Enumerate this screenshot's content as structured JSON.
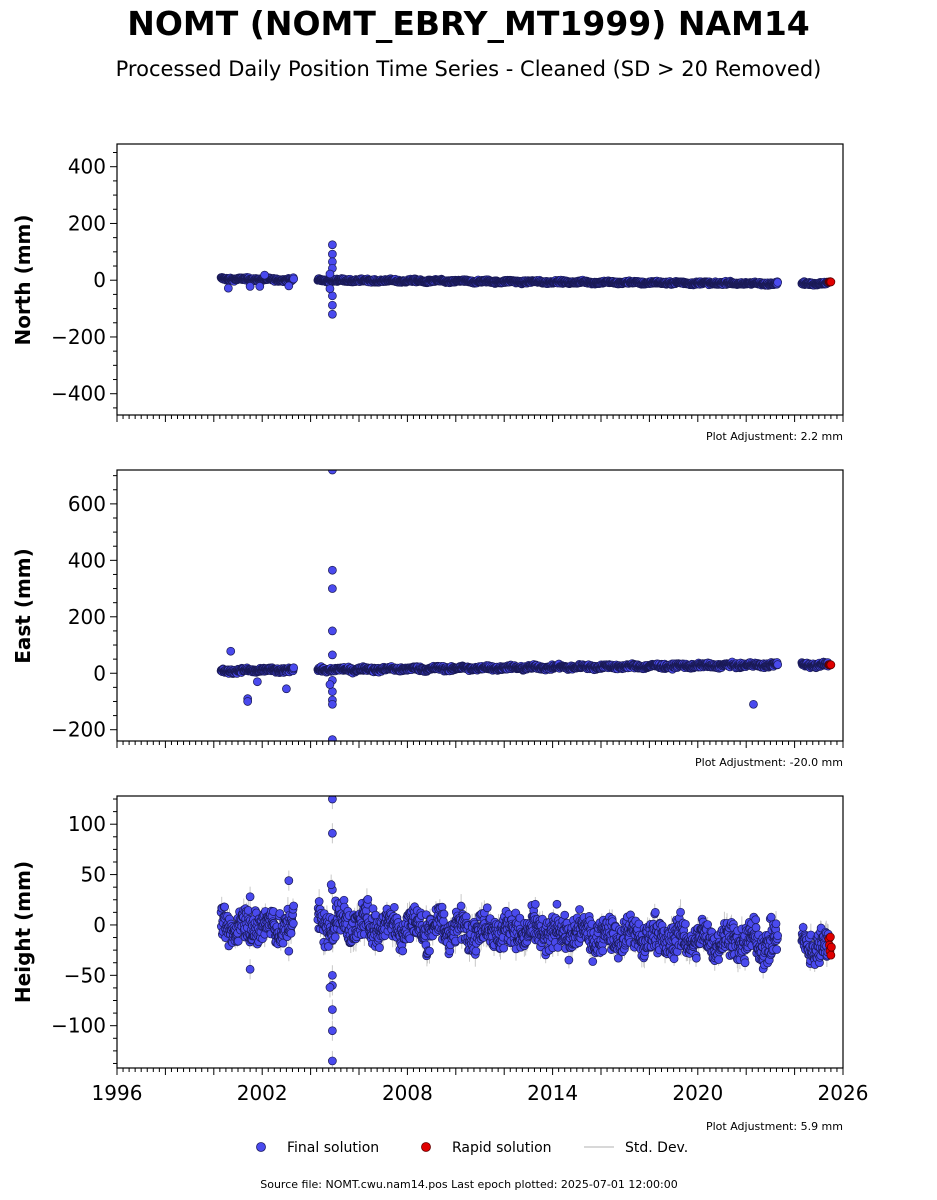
{
  "title": "NOMT (NOMT_EBRY_MT1999) NAM14",
  "subtitle": "Processed Daily Position Time Series - Cleaned (SD > 20 Removed)",
  "source_note": "Source file: NOMT.cwu.nam14.pos  Last epoch plotted: 2025-07-01 12:00:00",
  "legend": [
    {
      "label": "Final solution",
      "color": "#4a4aee",
      "kind": "marker"
    },
    {
      "label": "Rapid solution",
      "color": "#e00000",
      "kind": "marker"
    },
    {
      "label": "Std. Dev.",
      "color": "#cccccc",
      "kind": "line"
    }
  ],
  "chart_data": [
    {
      "type": "scatter",
      "ylabel": "North (mm)",
      "adjustment": "Plot Adjustment: 2.2 mm",
      "xlim": [
        1996,
        2026
      ],
      "ylim": [
        -475,
        480
      ],
      "yticks": [
        -400,
        -200,
        0,
        200,
        400
      ],
      "xticks": [
        1996,
        2002,
        2008,
        2014,
        2020,
        2026
      ],
      "segments": [
        {
          "x0": 2000.3,
          "x1": 2001.6,
          "y0": 5,
          "y1": 3
        },
        {
          "x0": 2001.6,
          "x1": 2003.3,
          "y0": 3,
          "y1": 1
        },
        {
          "x0": 2004.3,
          "x1": 2023.3,
          "y0": 0,
          "y1": -12
        },
        {
          "x0": 2024.3,
          "x1": 2025.4,
          "y0": -11,
          "y1": -12
        }
      ],
      "scatter_amp": 4,
      "outliers": [
        [
          2000.6,
          -28
        ],
        [
          2001.5,
          -22
        ],
        [
          2001.9,
          -22
        ],
        [
          2002.1,
          18
        ],
        [
          2003.1,
          -20
        ],
        [
          2004.9,
          125
        ],
        [
          2004.9,
          92
        ],
        [
          2004.9,
          65
        ],
        [
          2004.9,
          42
        ],
        [
          2004.9,
          -55
        ],
        [
          2004.9,
          -88
        ],
        [
          2004.9,
          -120
        ],
        [
          2004.8,
          22
        ],
        [
          2004.8,
          -30
        ]
      ],
      "rapid": [
        [
          2025.42,
          -6
        ],
        [
          2025.45,
          -7
        ],
        [
          2025.47,
          -5
        ],
        [
          2025.5,
          -6
        ]
      ]
    },
    {
      "type": "scatter",
      "ylabel": "East (mm)",
      "adjustment": "Plot Adjustment: -20.0 mm",
      "xlim": [
        1996,
        2026
      ],
      "ylim": [
        -240,
        720
      ],
      "yticks": [
        -200,
        0,
        200,
        400,
        600
      ],
      "xticks": [
        1996,
        2002,
        2008,
        2014,
        2020,
        2026
      ],
      "segments": [
        {
          "x0": 2000.3,
          "x1": 2001.6,
          "y0": 8,
          "y1": 10
        },
        {
          "x0": 2001.6,
          "x1": 2003.3,
          "y0": 10,
          "y1": 12
        },
        {
          "x0": 2004.3,
          "x1": 2023.3,
          "y0": 12,
          "y1": 30
        },
        {
          "x0": 2024.3,
          "x1": 2025.4,
          "y0": 30,
          "y1": 30
        }
      ],
      "scatter_amp": 6,
      "outliers": [
        [
          2000.7,
          78
        ],
        [
          2001.4,
          -90
        ],
        [
          2001.4,
          -100
        ],
        [
          2001.8,
          -30
        ],
        [
          2003.0,
          -55
        ],
        [
          2004.9,
          720
        ],
        [
          2004.9,
          365
        ],
        [
          2004.9,
          300
        ],
        [
          2004.9,
          150
        ],
        [
          2004.9,
          65
        ],
        [
          2004.9,
          -25
        ],
        [
          2004.9,
          -65
        ],
        [
          2004.9,
          -95
        ],
        [
          2004.9,
          -110
        ],
        [
          2004.9,
          -235
        ],
        [
          2004.8,
          -40
        ],
        [
          2022.3,
          -110
        ]
      ],
      "rapid": [
        [
          2025.42,
          30
        ],
        [
          2025.45,
          31
        ],
        [
          2025.47,
          29
        ],
        [
          2025.5,
          30
        ]
      ]
    },
    {
      "type": "scatter",
      "ylabel": "Height (mm)",
      "adjustment": "Plot Adjustment: 5.9 mm",
      "xlim": [
        1996,
        2026
      ],
      "ylim": [
        -142,
        128
      ],
      "yticks": [
        -100,
        -50,
        0,
        50,
        100
      ],
      "xticks": [
        1996,
        2002,
        2008,
        2014,
        2020,
        2026
      ],
      "segments": [
        {
          "x0": 2000.3,
          "x1": 2001.6,
          "y0": -2,
          "y1": 0
        },
        {
          "x0": 2001.6,
          "x1": 2003.3,
          "y0": 0,
          "y1": -2
        },
        {
          "x0": 2004.3,
          "x1": 2023.3,
          "y0": 3,
          "y1": -18
        },
        {
          "x0": 2024.3,
          "x1": 2025.4,
          "y0": -20,
          "y1": -22
        }
      ],
      "scatter_amp": 14,
      "outliers": [
        [
          2001.5,
          -44
        ],
        [
          2001.5,
          28
        ],
        [
          2003.1,
          44
        ],
        [
          2003.1,
          -26
        ],
        [
          2004.9,
          125
        ],
        [
          2004.9,
          91
        ],
        [
          2004.9,
          35
        ],
        [
          2004.9,
          -50
        ],
        [
          2004.9,
          -60
        ],
        [
          2004.9,
          -84
        ],
        [
          2004.9,
          -105
        ],
        [
          2004.9,
          -135
        ],
        [
          2004.8,
          -62
        ],
        [
          2004.85,
          40
        ]
      ],
      "rapid": [
        [
          2025.42,
          -14
        ],
        [
          2025.44,
          -20
        ],
        [
          2025.46,
          -26
        ],
        [
          2025.48,
          -12
        ],
        [
          2025.5,
          -30
        ],
        [
          2025.52,
          -22
        ]
      ]
    }
  ]
}
